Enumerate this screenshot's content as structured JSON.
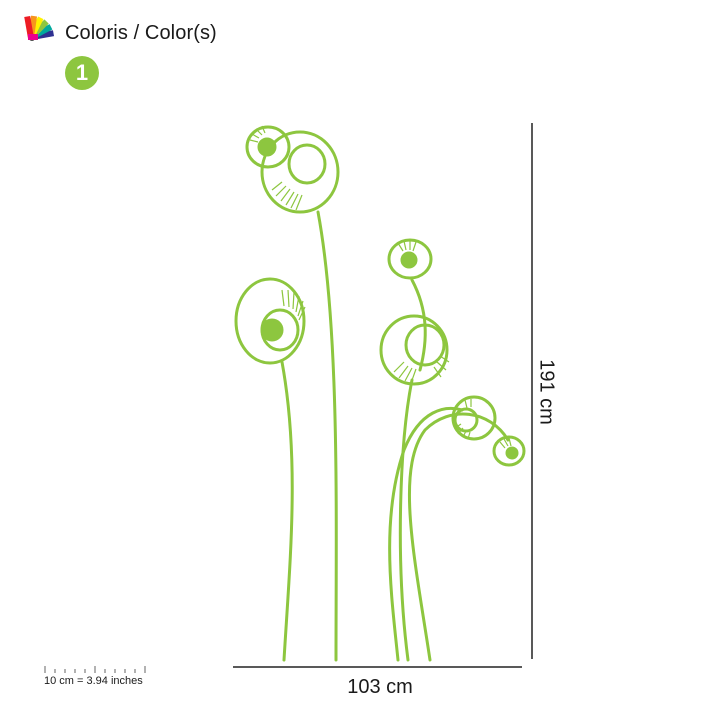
{
  "header": {
    "title": "Coloris / Color(s)",
    "icon": "color-swatch-fan-icon"
  },
  "colors": [
    {
      "number": "1",
      "hex": "#8dc63f"
    }
  ],
  "dimensions": {
    "width_label": "103 cm",
    "height_label": "191 cm"
  },
  "scale": {
    "label": "10 cm = 3.94 inches"
  },
  "artwork": {
    "subject": "flower-stems",
    "stroke_color": "#8dc63f"
  }
}
